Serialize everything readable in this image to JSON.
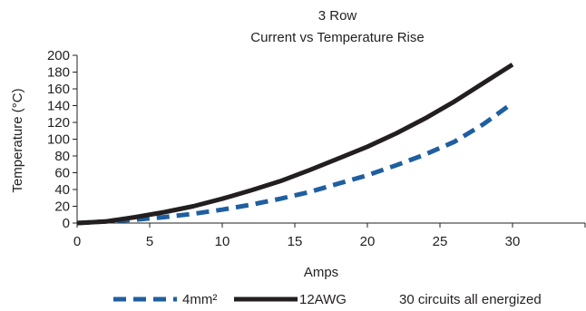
{
  "chart_data": {
    "type": "line",
    "title": "3 Row",
    "subtitle": "Current vs Temperature Rise",
    "xlabel": "Amps",
    "ylabel": "Temperature (°C)",
    "xlim": [
      0,
      35
    ],
    "ylim": [
      0,
      200
    ],
    "x_ticks": [
      0,
      5,
      10,
      15,
      20,
      25,
      30
    ],
    "y_ticks": [
      0,
      20,
      40,
      60,
      80,
      100,
      120,
      140,
      160,
      180,
      200
    ],
    "grid": false,
    "legend_position": "bottom",
    "series": [
      {
        "name": "4mm²",
        "style": "dashed",
        "color": "#1f5fa0",
        "x": [
          0,
          2,
          4,
          6,
          8,
          10,
          12,
          14,
          16,
          18,
          20,
          22,
          24,
          26,
          28,
          30
        ],
        "y": [
          0,
          2,
          4,
          7,
          11,
          16,
          22,
          29,
          37,
          47,
          57,
          69,
          82,
          97,
          118,
          143
        ]
      },
      {
        "name": "12AWG",
        "style": "solid",
        "color": "#231f20",
        "x": [
          0,
          2,
          4,
          6,
          8,
          10,
          12,
          14,
          16,
          18,
          20,
          22,
          24,
          26,
          28,
          30
        ],
        "y": [
          0,
          2,
          7,
          13,
          20,
          29,
          39,
          50,
          63,
          77,
          91,
          107,
          125,
          145,
          167,
          189
        ]
      }
    ],
    "annotation": "30 circuits all energized"
  }
}
